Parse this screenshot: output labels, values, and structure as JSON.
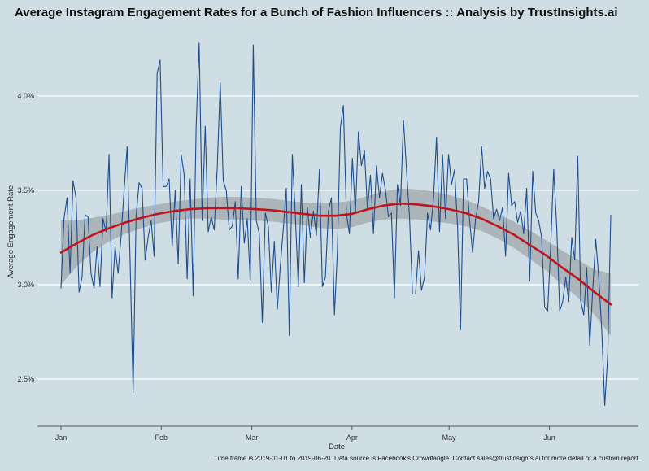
{
  "chart_data": {
    "type": "line",
    "title": "Average Instagram Engagement Rates for a Bunch of Fashion Influencers :: Analysis by TrustInsights.ai",
    "xlabel": "Date",
    "ylabel": "Average Engagement Rate",
    "caption": "Time frame is 2019-01-01 to 2019-06-20. Data source is Facebook's Crowdtangle. Contact sales@trustinsights.ai for more detail or a custom report.",
    "x_ticks": [
      "Jan",
      "Feb",
      "Mar",
      "Apr",
      "May",
      "Jun"
    ],
    "y_ticks": [
      "2.5%",
      "3.0%",
      "3.5%",
      "4.0%"
    ],
    "y_tick_values": [
      2.5,
      3.0,
      3.5,
      4.0
    ],
    "ylim": [
      2.25,
      4.37
    ],
    "x_start": "2019-01-01",
    "x_end": "2019-06-20",
    "grid": "horizontal",
    "colors": {
      "background": "#cfdde5",
      "line": "#1f4e8c",
      "smooth": "#c0141c",
      "band": "#a6aeb3",
      "grid": "#ffffff"
    },
    "series": [
      {
        "values": [
          2.98,
          3.35,
          3.46,
          3.06,
          3.55,
          3.46,
          2.96,
          3.04,
          3.37,
          3.36,
          3.06,
          2.98,
          3.2,
          2.99,
          3.35,
          3.28,
          3.69,
          2.93,
          3.2,
          3.06,
          3.26,
          3.5,
          3.73,
          3.12,
          2.43,
          3.36,
          3.54,
          3.51,
          3.13,
          3.25,
          3.34,
          3.15,
          4.12,
          4.19,
          3.52,
          3.52,
          3.56,
          3.2,
          3.5,
          3.11,
          3.69,
          3.58,
          3.03,
          3.56,
          2.94,
          3.84,
          4.28,
          3.34,
          3.84,
          3.28,
          3.36,
          3.29,
          3.62,
          4.07,
          3.55,
          3.5,
          3.29,
          3.31,
          3.44,
          3.03,
          3.52,
          3.22,
          3.35,
          3.02,
          4.27,
          3.34,
          3.27,
          2.8,
          3.38,
          3.31,
          2.96,
          3.23,
          2.87,
          3.1,
          3.3,
          3.51,
          2.73,
          3.69,
          3.37,
          2.99,
          3.53,
          3.01,
          3.41,
          3.25,
          3.39,
          3.26,
          3.61,
          2.99,
          3.04,
          3.39,
          3.46,
          2.84,
          3.17,
          3.83,
          3.95,
          3.38,
          3.27,
          3.67,
          3.38,
          3.81,
          3.63,
          3.71,
          3.4,
          3.58,
          3.27,
          3.63,
          3.46,
          3.59,
          3.5,
          3.36,
          3.38,
          2.93,
          3.53,
          3.42,
          3.87,
          3.61,
          3.36,
          2.95,
          2.95,
          3.18,
          2.97,
          3.04,
          3.38,
          3.29,
          3.46,
          3.78,
          3.28,
          3.69,
          3.35,
          3.69,
          3.53,
          3.61,
          3.31,
          2.76,
          3.56,
          3.56,
          3.34,
          3.17,
          3.35,
          3.44,
          3.73,
          3.51,
          3.6,
          3.56,
          3.35,
          3.4,
          3.34,
          3.41,
          3.15,
          3.59,
          3.42,
          3.44,
          3.33,
          3.39,
          3.27,
          3.51,
          3.02,
          3.6,
          3.38,
          3.34,
          3.25,
          2.88,
          2.86,
          3.2,
          3.61,
          3.31,
          2.86,
          2.91,
          3.04,
          2.91,
          3.25,
          3.13,
          3.68,
          2.91,
          2.84,
          3.09,
          2.68,
          2.97,
          3.24,
          3.04,
          2.76,
          2.36,
          2.63,
          3.37
        ]
      }
    ],
    "smooth": {
      "values": [
        3.17,
        3.22,
        3.265,
        3.3,
        3.33,
        3.355,
        3.375,
        3.39,
        3.4,
        3.405,
        3.405,
        3.405,
        3.4,
        3.395,
        3.385,
        3.375,
        3.365,
        3.365,
        3.375,
        3.4,
        3.42,
        3.43,
        3.425,
        3.415,
        3.4,
        3.38,
        3.35,
        3.31,
        3.265,
        3.21,
        3.155,
        3.09,
        3.03,
        2.96,
        2.895
      ],
      "half_width": [
        0.17,
        0.12,
        0.09,
        0.07,
        0.06,
        0.055,
        0.05,
        0.05,
        0.05,
        0.055,
        0.06,
        0.06,
        0.06,
        0.06,
        0.06,
        0.06,
        0.065,
        0.07,
        0.07,
        0.07,
        0.075,
        0.08,
        0.08,
        0.08,
        0.075,
        0.07,
        0.065,
        0.065,
        0.07,
        0.075,
        0.08,
        0.09,
        0.1,
        0.12,
        0.165
      ]
    }
  }
}
